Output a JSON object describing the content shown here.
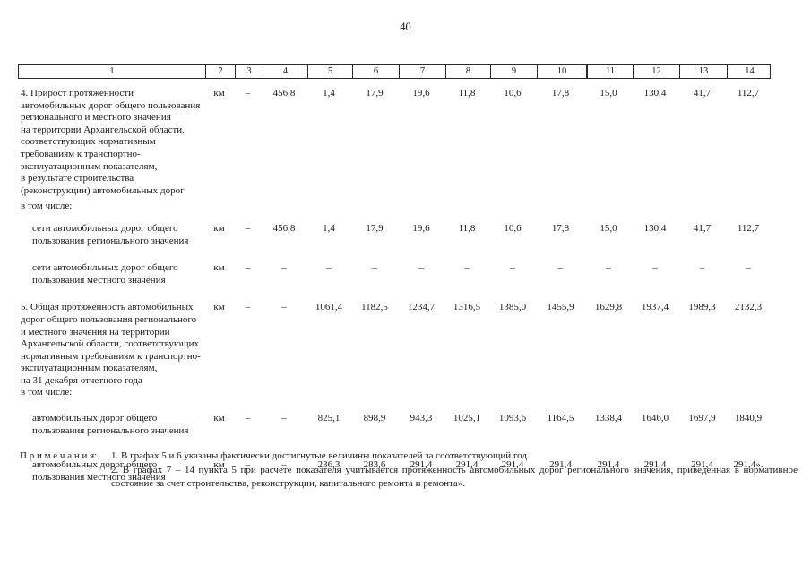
{
  "page": {
    "number": "40"
  },
  "table": {
    "header_cols": [
      "1",
      "2",
      "3",
      "4",
      "5",
      "6",
      "7",
      "8",
      "9",
      "10",
      "11",
      "12",
      "13",
      "14"
    ],
    "rows": [
      {
        "type": "main",
        "label_lines": [
          "4. Прирост протяженности",
          "автомобильных дорог общего пользования",
          "регионального и местного значения",
          "на территории Архангельской области,",
          "соответствующих нормативным",
          "требованиям к транспортно-",
          "эксплуатационным показателям,",
          "в результате строительства",
          "(реконструкции) автомобильных дорог"
        ],
        "values": [
          "км",
          "–",
          "456,8",
          "1,4",
          "17,9",
          "19,6",
          "11,8",
          "10,6",
          "17,8",
          "15,0",
          "130,4",
          "41,7",
          "112,7"
        ]
      },
      {
        "type": "subhead",
        "label_lines": [
          "в том числе:"
        ],
        "values": []
      },
      {
        "type": "sub",
        "label_lines": [
          "сети автомобильных дорог общего",
          "пользования регионального значения"
        ],
        "values": [
          "км",
          "–",
          "456,8",
          "1,4",
          "17,9",
          "19,6",
          "11,8",
          "10,6",
          "17,8",
          "15,0",
          "130,4",
          "41,7",
          "112,7"
        ]
      },
      {
        "type": "sub",
        "label_lines": [
          "сети автомобильных дорог общего",
          "пользования местного значения"
        ],
        "values": [
          "км",
          "–",
          "–",
          "–",
          "–",
          "–",
          "–",
          "–",
          "–",
          "–",
          "–",
          "–",
          "–"
        ]
      },
      {
        "type": "main",
        "label_lines": [
          "5. Общая протяженность автомобильных",
          "дорог общего пользования регионального",
          "и местного значения на территории",
          "Архангельской области, соответствующих",
          "нормативным требованиям к транспортно-",
          "эксплуатационным показателям,",
          "на 31 декабря отчетного года",
          "в том числе:"
        ],
        "values": [
          "км",
          "–",
          "–",
          "1061,4",
          "1182,5",
          "1234,7",
          "1316,5",
          "1385,0",
          "1455,9",
          "1629,8",
          "1937,4",
          "1989,3",
          "2132,3"
        ]
      },
      {
        "type": "sub",
        "label_lines": [
          "автомобильных дорог общего",
          "пользования регионального значения"
        ],
        "values": [
          "км",
          "–",
          "–",
          "825,1",
          "898,9",
          "943,3",
          "1025,1",
          "1093,6",
          "1164,5",
          "1338,4",
          "1646,0",
          "1697,9",
          "1840,9"
        ]
      },
      {
        "type": "sub",
        "label_lines": [
          "автомобильных дорог общего",
          "пользования местного значения"
        ],
        "values": [
          "км",
          "–",
          "–",
          "236,3",
          "283,6",
          "291,4",
          "291,4",
          "291,4",
          "291,4",
          "291,4",
          "291,4",
          "291,4",
          "291,4»."
        ]
      }
    ]
  },
  "notes": {
    "label": "П р и м е ч а н и я:",
    "items": [
      "1. В графах 5 и 6 указаны фактически достигнутые величины показателей за соответствующий год.",
      "2. В графах 7 – 14 пункта 5 при расчете показателя учитывается протяженность автомобильных дорог регионального значения, приведенная в нормативное состояние за счет строительства, реконструкции, капитального ремонта и ремонта»."
    ]
  }
}
